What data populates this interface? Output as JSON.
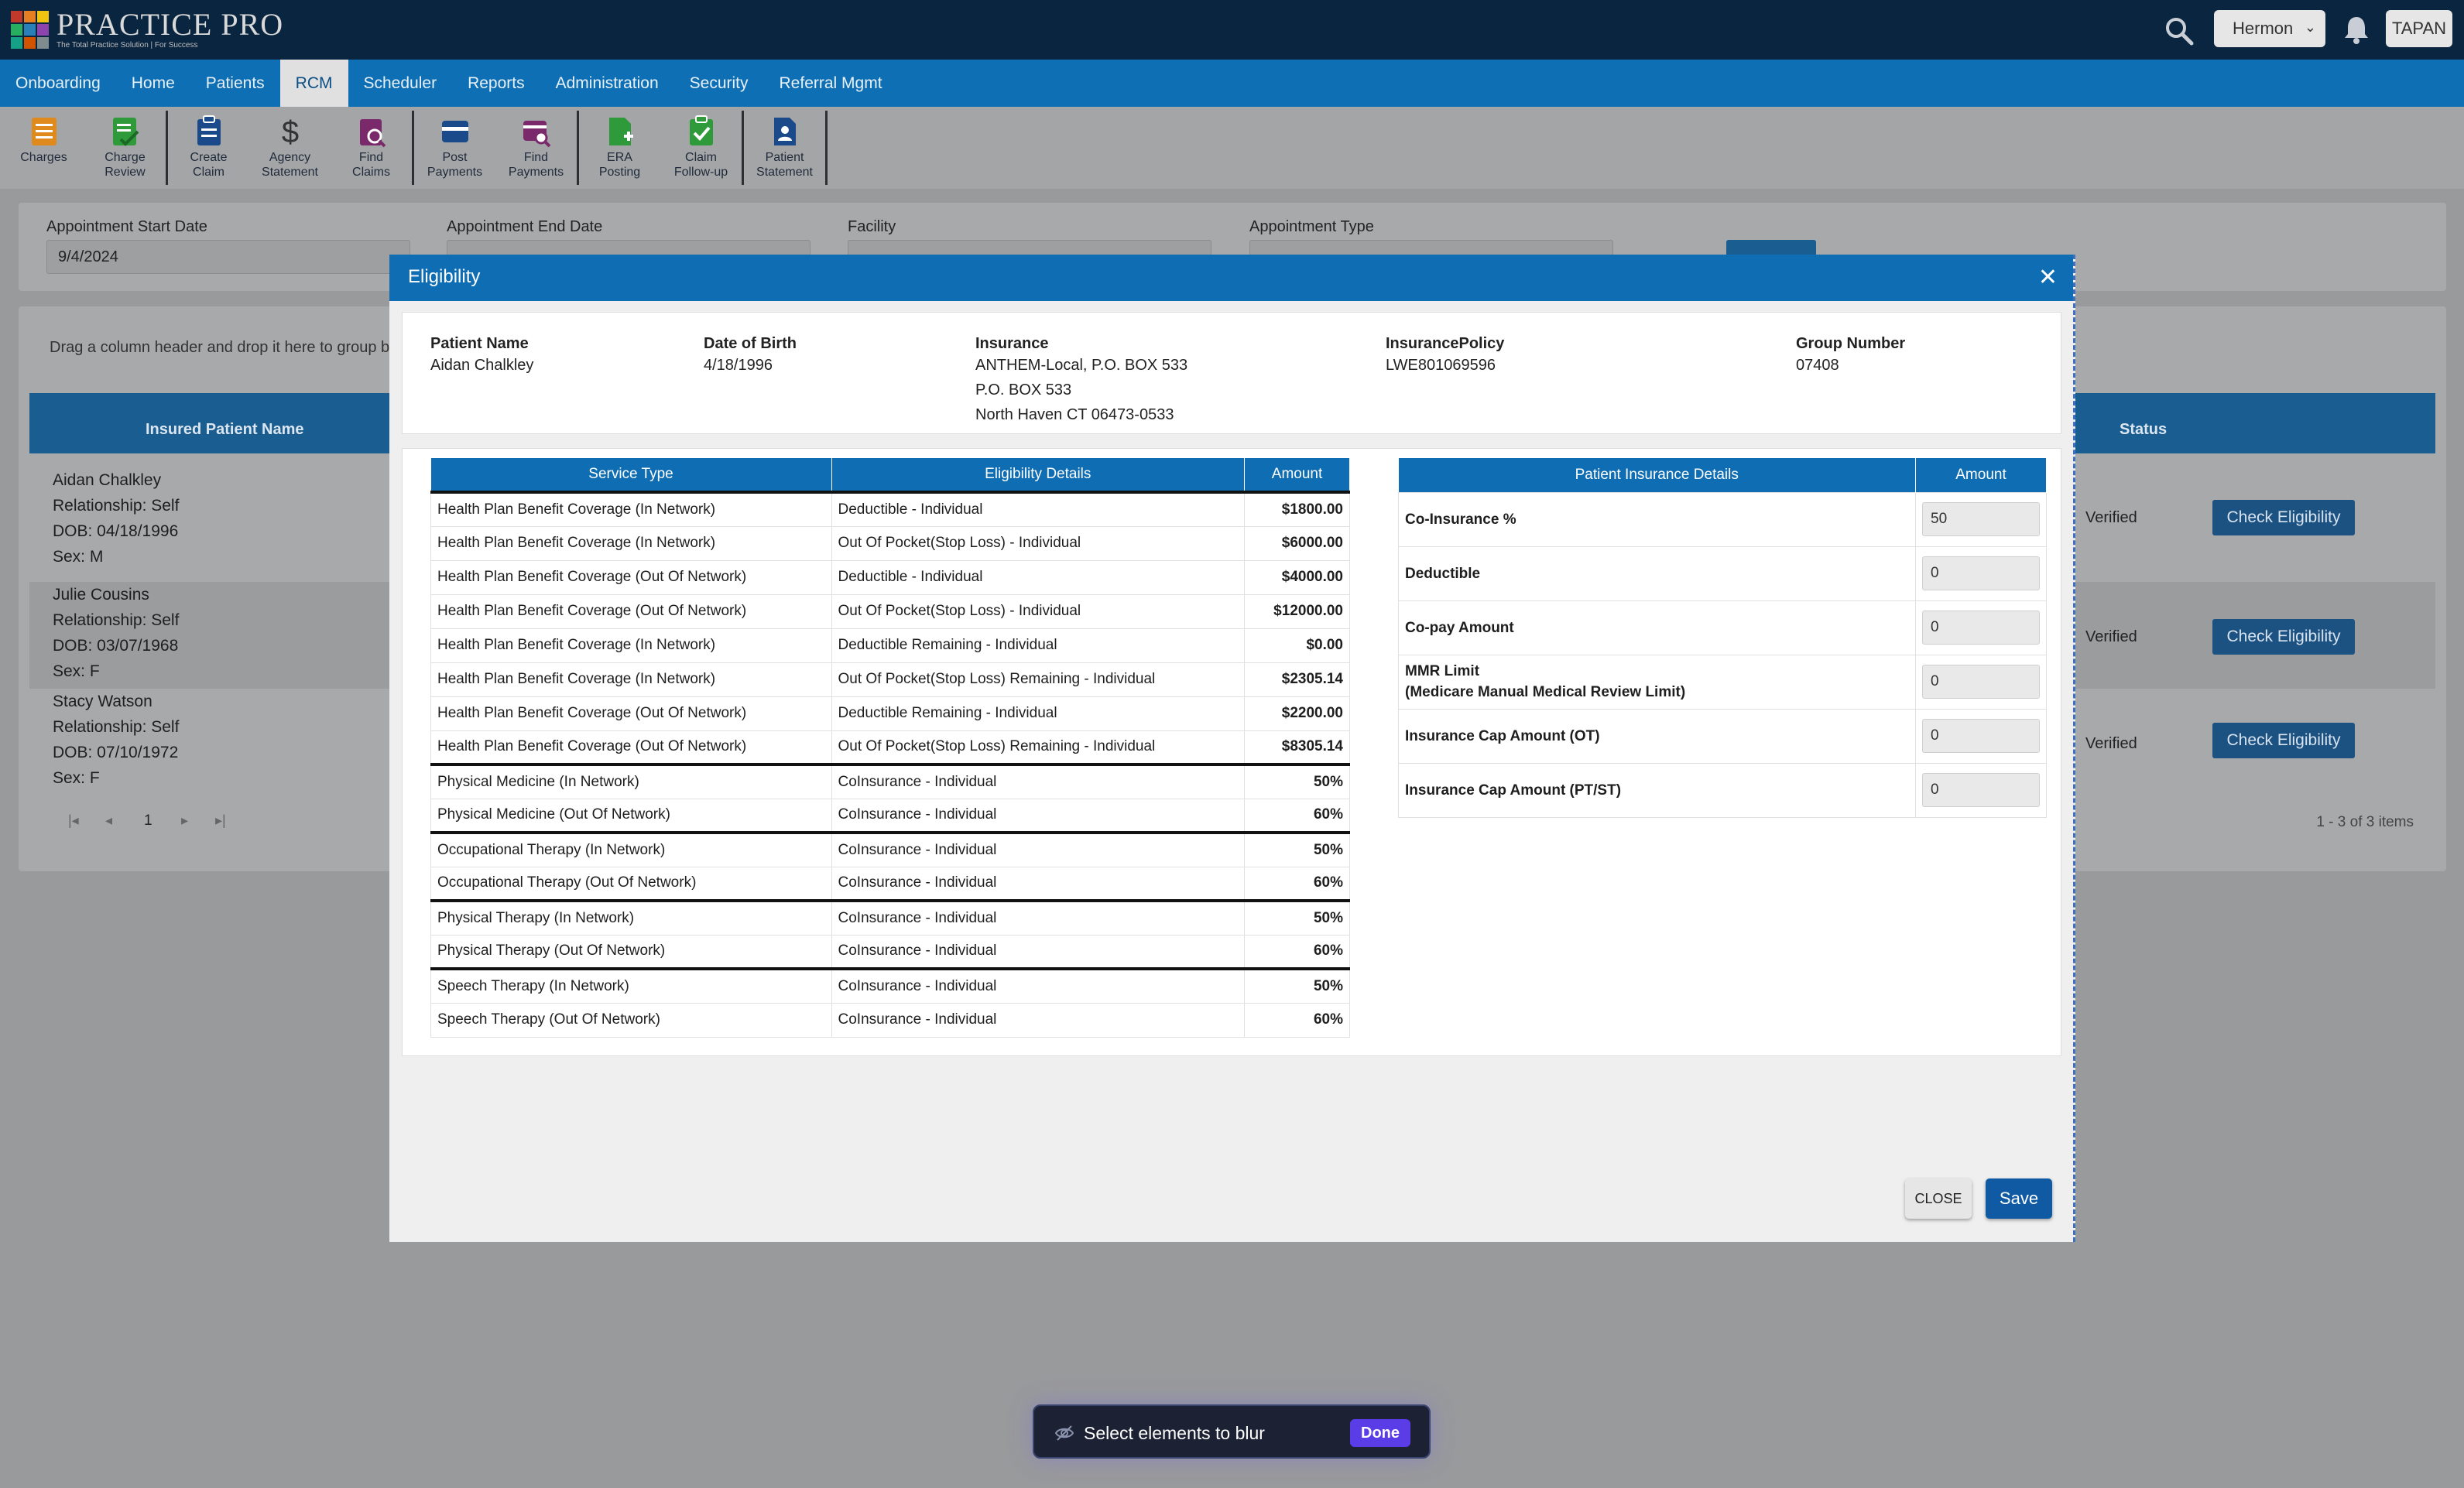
{
  "app": {
    "logo_text": "PRACTICE PRO",
    "logo_tagline": "The Total Practice Solution | For Success"
  },
  "header": {
    "location": "Hermon",
    "user": "TAPAN"
  },
  "nav": [
    "Onboarding",
    "Home",
    "Patients",
    "RCM",
    "Scheduler",
    "Reports",
    "Administration",
    "Security",
    "Referral Mgmt"
  ],
  "nav_active": "RCM",
  "toolbar": [
    {
      "label": "Charges",
      "icon": "charges-icon",
      "color": "#e08a1e"
    },
    {
      "label": "Charge\nReview",
      "icon": "charge-review-icon",
      "color": "#2e9a3a"
    },
    {
      "label": "Create\nClaim",
      "icon": "create-claim-icon",
      "color": "#1a4a8a"
    },
    {
      "label": "Agency\nStatement",
      "icon": "dollar-icon",
      "color": "#333"
    },
    {
      "label": "Find\nClaims",
      "icon": "find-claims-icon",
      "color": "#7a2a6a"
    },
    {
      "label": "Post\nPayments",
      "icon": "post-payments-icon",
      "color": "#1a4a8a"
    },
    {
      "label": "Find\nPayments",
      "icon": "find-payments-icon",
      "color": "#7a2a6a"
    },
    {
      "label": "ERA\nPosting",
      "icon": "era-posting-icon",
      "color": "#2e9a3a"
    },
    {
      "label": "Claim\nFollow-up",
      "icon": "claim-followup-icon",
      "color": "#2e9a3a"
    },
    {
      "label": "Patient\nStatement",
      "icon": "patient-statement-icon",
      "color": "#1a4a8a"
    }
  ],
  "filters": {
    "start_label": "Appointment Start Date",
    "start_value": "9/4/2024",
    "end_label": "Appointment End Date",
    "facility_label": "Facility",
    "type_label": "Appointment Type"
  },
  "grid": {
    "group_hint": "Drag a column header and drop it here to group by t",
    "col_name": "Insured Patient Name",
    "col_status": "Status",
    "rows": [
      {
        "name": "Aidan Chalkley",
        "rel": "Relationship: Self",
        "dob": "DOB: 04/18/1996",
        "sex": "Sex: M",
        "status": "Verified",
        "action": "Check Eligibility"
      },
      {
        "name": "Julie Cousins",
        "rel": "Relationship: Self",
        "dob": "DOB: 03/07/1968",
        "sex": "Sex: F",
        "status": "Verified",
        "action": "Check Eligibility"
      },
      {
        "name": "Stacy Watson",
        "rel": "Relationship: Self",
        "dob": "DOB: 07/10/1972",
        "sex": "Sex: F",
        "status": "Verified",
        "action": "Check Eligibility"
      }
    ],
    "page": "1",
    "count": "1 - 3 of 3 items"
  },
  "modal": {
    "title": "Eligibility",
    "patient": {
      "name_label": "Patient Name",
      "name": "Aidan Chalkley",
      "dob_label": "Date of Birth",
      "dob": "4/18/1996",
      "ins_label": "Insurance",
      "ins": "ANTHEM-Local, P.O. BOX 533\nP.O. BOX 533\nNorth Haven CT 06473-0533",
      "policy_label": "InsurancePolicy",
      "policy": "LWE801069596",
      "group_label": "Group Number",
      "group": "07408"
    },
    "svc_headers": [
      "Service Type",
      "Eligibility Details",
      "Amount"
    ],
    "svc_rows": [
      {
        "type": "Health Plan Benefit Coverage (In Network)",
        "detail": "Deductible - Individual",
        "amount": "$1800.00"
      },
      {
        "type": "Health Plan Benefit Coverage (In Network)",
        "detail": "Out Of Pocket(Stop Loss) - Individual",
        "amount": "$6000.00"
      },
      {
        "type": "Health Plan Benefit Coverage (Out Of Network)",
        "detail": "Deductible - Individual",
        "amount": "$4000.00"
      },
      {
        "type": "Health Plan Benefit Coverage (Out Of Network)",
        "detail": "Out Of Pocket(Stop Loss) - Individual",
        "amount": "$12000.00"
      },
      {
        "type": "Health Plan Benefit Coverage (In Network)",
        "detail": "Deductible Remaining - Individual",
        "amount": "$0.00"
      },
      {
        "type": "Health Plan Benefit Coverage (In Network)",
        "detail": "Out Of Pocket(Stop Loss) Remaining - Individual",
        "amount": "$2305.14"
      },
      {
        "type": "Health Plan Benefit Coverage (Out Of Network)",
        "detail": "Deductible Remaining - Individual",
        "amount": "$2200.00"
      },
      {
        "type": "Health Plan Benefit Coverage (Out Of Network)",
        "detail": "Out Of Pocket(Stop Loss) Remaining - Individual",
        "amount": "$8305.14"
      },
      {
        "type": "Physical Medicine (In Network)",
        "detail": "CoInsurance - Individual",
        "amount": "50%",
        "group_start": true
      },
      {
        "type": "Physical Medicine (Out Of Network)",
        "detail": "CoInsurance - Individual",
        "amount": "60%"
      },
      {
        "type": "Occupational Therapy (In Network)",
        "detail": "CoInsurance - Individual",
        "amount": "50%",
        "group_start": true
      },
      {
        "type": "Occupational Therapy (Out Of Network)",
        "detail": "CoInsurance - Individual",
        "amount": "60%"
      },
      {
        "type": "Physical Therapy (In Network)",
        "detail": "CoInsurance - Individual",
        "amount": "50%",
        "group_start": true
      },
      {
        "type": "Physical Therapy (Out Of Network)",
        "detail": "CoInsurance - Individual",
        "amount": "60%"
      },
      {
        "type": "Speech Therapy (In Network)",
        "detail": "CoInsurance - Individual",
        "amount": "50%",
        "group_start": true
      },
      {
        "type": "Speech Therapy (Out Of Network)",
        "detail": "CoInsurance - Individual",
        "amount": "60%"
      }
    ],
    "ins_headers": [
      "Patient Insurance Details",
      "Amount"
    ],
    "ins_rows": [
      {
        "label": "Co-Insurance %",
        "value": "50"
      },
      {
        "label": "Deductible",
        "value": "0"
      },
      {
        "label": "Co-pay Amount",
        "value": "0"
      },
      {
        "label": "MMR Limit\n(Medicare Manual Medical Review Limit)",
        "value": "0"
      },
      {
        "label": "Insurance Cap Amount (OT)",
        "value": "0"
      },
      {
        "label": "Insurance Cap Amount (PT/ST)",
        "value": "0"
      }
    ],
    "close_label": "CLOSE",
    "save_label": "Save"
  },
  "toast": {
    "text": "Select elements to blur",
    "done": "Done"
  }
}
